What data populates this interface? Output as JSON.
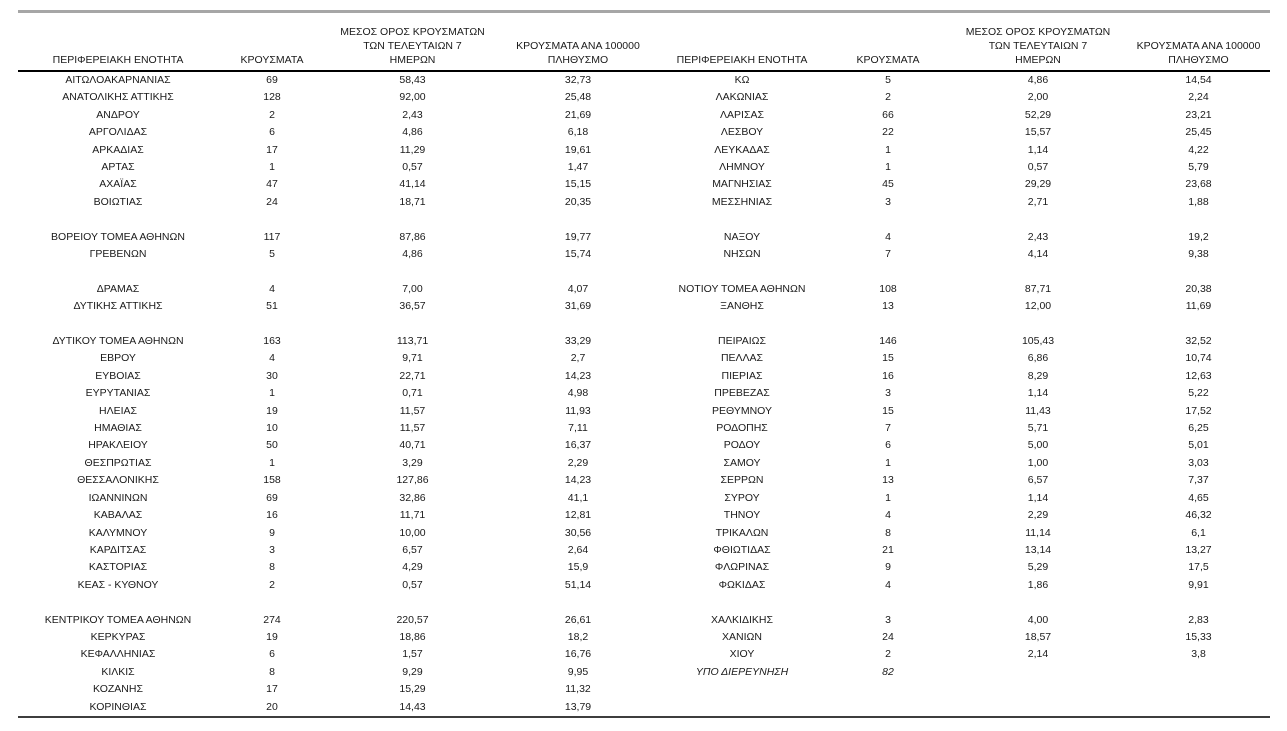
{
  "colors": {
    "background": "#ffffff",
    "text": "#1a1a1a",
    "top_rule": "#a6a6a6",
    "header_rule": "#000000",
    "bottom_rule": "#3d3d3d"
  },
  "table": {
    "header": {
      "col_region": "ΠΕΡΙΦΕΡΕΙΑΚΗ ΕΝΟΤΗΤΑ",
      "col_cases": "ΚΡΟΥΣΜΑΤΑ",
      "col_avg7_lines": [
        "ΜΕΣΟΣ ΟΡΟΣ ΚΡΟΥΣΜΑΤΩΝ",
        "ΤΩΝ ΤΕΛΕΥΤΑΙΩΝ 7",
        "ΗΜΕΡΩΝ"
      ],
      "col_per100k_lines": [
        "ΚΡΟΥΣΜΑΤΑ ΑΝΑ 100000",
        "ΠΛΗΘΥΣΜΟ"
      ]
    },
    "left_rows": [
      {
        "region": "ΑΙΤΩΛΟΑΚΑΡΝΑΝΙΑΣ",
        "cases": "69",
        "avg7": "58,43",
        "per100k": "32,73"
      },
      {
        "region": "ΑΝΑΤΟΛΙΚΗΣ ΑΤΤΙΚΗΣ",
        "cases": "128",
        "avg7": "92,00",
        "per100k": "25,48"
      },
      {
        "region": "ΑΝΔΡΟΥ",
        "cases": "2",
        "avg7": "2,43",
        "per100k": "21,69"
      },
      {
        "region": "ΑΡΓΟΛΙΔΑΣ",
        "cases": "6",
        "avg7": "4,86",
        "per100k": "6,18"
      },
      {
        "region": "ΑΡΚΑΔΙΑΣ",
        "cases": "17",
        "avg7": "11,29",
        "per100k": "19,61"
      },
      {
        "region": "ΑΡΤΑΣ",
        "cases": "1",
        "avg7": "0,57",
        "per100k": "1,47"
      },
      {
        "region": "ΑΧΑΪΑΣ",
        "cases": "47",
        "avg7": "41,14",
        "per100k": "15,15"
      },
      {
        "region": "ΒΟΙΩΤΙΑΣ",
        "cases": "24",
        "avg7": "18,71",
        "per100k": "20,35"
      },
      {
        "region": "",
        "cases": "",
        "avg7": "",
        "per100k": ""
      },
      {
        "region": "ΒΟΡΕΙΟΥ ΤΟΜΕΑ ΑΘΗΝΩΝ",
        "cases": "117",
        "avg7": "87,86",
        "per100k": "19,77"
      },
      {
        "region": "ΓΡΕΒΕΝΩΝ",
        "cases": "5",
        "avg7": "4,86",
        "per100k": "15,74"
      },
      {
        "region": "",
        "cases": "",
        "avg7": "",
        "per100k": ""
      },
      {
        "region": "ΔΡΑΜΑΣ",
        "cases": "4",
        "avg7": "7,00",
        "per100k": "4,07"
      },
      {
        "region": "ΔΥΤΙΚΗΣ ΑΤΤΙΚΗΣ",
        "cases": "51",
        "avg7": "36,57",
        "per100k": "31,69"
      },
      {
        "region": "",
        "cases": "",
        "avg7": "",
        "per100k": ""
      },
      {
        "region": "ΔΥΤΙΚΟΥ ΤΟΜΕΑ ΑΘΗΝΩΝ",
        "cases": "163",
        "avg7": "113,71",
        "per100k": "33,29"
      },
      {
        "region": "ΕΒΡΟΥ",
        "cases": "4",
        "avg7": "9,71",
        "per100k": "2,7"
      },
      {
        "region": "ΕΥΒΟΙΑΣ",
        "cases": "30",
        "avg7": "22,71",
        "per100k": "14,23"
      },
      {
        "region": "ΕΥΡΥΤΑΝΙΑΣ",
        "cases": "1",
        "avg7": "0,71",
        "per100k": "4,98"
      },
      {
        "region": "ΗΛΕΙΑΣ",
        "cases": "19",
        "avg7": "11,57",
        "per100k": "11,93"
      },
      {
        "region": "ΗΜΑΘΙΑΣ",
        "cases": "10",
        "avg7": "11,57",
        "per100k": "7,11"
      },
      {
        "region": "ΗΡΑΚΛΕΙΟΥ",
        "cases": "50",
        "avg7": "40,71",
        "per100k": "16,37"
      },
      {
        "region": "ΘΕΣΠΡΩΤΙΑΣ",
        "cases": "1",
        "avg7": "3,29",
        "per100k": "2,29"
      },
      {
        "region": "ΘΕΣΣΑΛΟΝΙΚΗΣ",
        "cases": "158",
        "avg7": "127,86",
        "per100k": "14,23"
      },
      {
        "region": "ΙΩΑΝΝΙΝΩΝ",
        "cases": "69",
        "avg7": "32,86",
        "per100k": "41,1"
      },
      {
        "region": "ΚΑΒΑΛΑΣ",
        "cases": "16",
        "avg7": "11,71",
        "per100k": "12,81"
      },
      {
        "region": "ΚΑΛΥΜΝΟΥ",
        "cases": "9",
        "avg7": "10,00",
        "per100k": "30,56"
      },
      {
        "region": "ΚΑΡΔΙΤΣΑΣ",
        "cases": "3",
        "avg7": "6,57",
        "per100k": "2,64"
      },
      {
        "region": "ΚΑΣΤΟΡΙΑΣ",
        "cases": "8",
        "avg7": "4,29",
        "per100k": "15,9"
      },
      {
        "region": "ΚΕΑΣ - ΚΥΘΝΟΥ",
        "cases": "2",
        "avg7": "0,57",
        "per100k": "51,14"
      },
      {
        "region": "",
        "cases": "",
        "avg7": "",
        "per100k": ""
      },
      {
        "region": "ΚΕΝΤΡΙΚΟΥ ΤΟΜΕΑ ΑΘΗΝΩΝ",
        "cases": "274",
        "avg7": "220,57",
        "per100k": "26,61"
      },
      {
        "region": "ΚΕΡΚΥΡΑΣ",
        "cases": "19",
        "avg7": "18,86",
        "per100k": "18,2"
      },
      {
        "region": "ΚΕΦΑΛΛΗΝΙΑΣ",
        "cases": "6",
        "avg7": "1,57",
        "per100k": "16,76"
      },
      {
        "region": "ΚΙΛΚΙΣ",
        "cases": "8",
        "avg7": "9,29",
        "per100k": "9,95"
      },
      {
        "region": "ΚΟΖΑΝΗΣ",
        "cases": "17",
        "avg7": "15,29",
        "per100k": "11,32"
      },
      {
        "region": "ΚΟΡΙΝΘΙΑΣ",
        "cases": "20",
        "avg7": "14,43",
        "per100k": "13,79"
      }
    ],
    "right_rows": [
      {
        "region": "ΚΩ",
        "cases": "5",
        "avg7": "4,86",
        "per100k": "14,54"
      },
      {
        "region": "ΛΑΚΩΝΙΑΣ",
        "cases": "2",
        "avg7": "2,00",
        "per100k": "2,24"
      },
      {
        "region": "ΛΑΡΙΣΑΣ",
        "cases": "66",
        "avg7": "52,29",
        "per100k": "23,21"
      },
      {
        "region": "ΛΕΣΒΟΥ",
        "cases": "22",
        "avg7": "15,57",
        "per100k": "25,45"
      },
      {
        "region": "ΛΕΥΚΑΔΑΣ",
        "cases": "1",
        "avg7": "1,14",
        "per100k": "4,22"
      },
      {
        "region": "ΛΗΜΝΟΥ",
        "cases": "1",
        "avg7": "0,57",
        "per100k": "5,79"
      },
      {
        "region": "ΜΑΓΝΗΣΙΑΣ",
        "cases": "45",
        "avg7": "29,29",
        "per100k": "23,68"
      },
      {
        "region": "ΜΕΣΣΗΝΙΑΣ",
        "cases": "3",
        "avg7": "2,71",
        "per100k": "1,88"
      },
      {
        "region": "",
        "cases": "",
        "avg7": "",
        "per100k": ""
      },
      {
        "region": "ΝΑΞΟΥ",
        "cases": "4",
        "avg7": "2,43",
        "per100k": "19,2"
      },
      {
        "region": "ΝΗΣΩΝ",
        "cases": "7",
        "avg7": "4,14",
        "per100k": "9,38"
      },
      {
        "region": "",
        "cases": "",
        "avg7": "",
        "per100k": ""
      },
      {
        "region": "ΝΟΤΙΟΥ ΤΟΜΕΑ ΑΘΗΝΩΝ",
        "cases": "108",
        "avg7": "87,71",
        "per100k": "20,38"
      },
      {
        "region": "ΞΑΝΘΗΣ",
        "cases": "13",
        "avg7": "12,00",
        "per100k": "11,69"
      },
      {
        "region": "",
        "cases": "",
        "avg7": "",
        "per100k": ""
      },
      {
        "region": "ΠΕΙΡΑΙΩΣ",
        "cases": "146",
        "avg7": "105,43",
        "per100k": "32,52"
      },
      {
        "region": "ΠΕΛΛΑΣ",
        "cases": "15",
        "avg7": "6,86",
        "per100k": "10,74"
      },
      {
        "region": "ΠΙΕΡΙΑΣ",
        "cases": "16",
        "avg7": "8,29",
        "per100k": "12,63"
      },
      {
        "region": "ΠΡΕΒΕΖΑΣ",
        "cases": "3",
        "avg7": "1,14",
        "per100k": "5,22"
      },
      {
        "region": "ΡΕΘΥΜΝΟΥ",
        "cases": "15",
        "avg7": "11,43",
        "per100k": "17,52"
      },
      {
        "region": "ΡΟΔΟΠΗΣ",
        "cases": "7",
        "avg7": "5,71",
        "per100k": "6,25"
      },
      {
        "region": "ΡΟΔΟΥ",
        "cases": "6",
        "avg7": "5,00",
        "per100k": "5,01"
      },
      {
        "region": "ΣΑΜΟΥ",
        "cases": "1",
        "avg7": "1,00",
        "per100k": "3,03"
      },
      {
        "region": "ΣΕΡΡΩΝ",
        "cases": "13",
        "avg7": "6,57",
        "per100k": "7,37"
      },
      {
        "region": "ΣΥΡΟΥ",
        "cases": "1",
        "avg7": "1,14",
        "per100k": "4,65"
      },
      {
        "region": "ΤΗΝΟΥ",
        "cases": "4",
        "avg7": "2,29",
        "per100k": "46,32"
      },
      {
        "region": "ΤΡΙΚΑΛΩΝ",
        "cases": "8",
        "avg7": "11,14",
        "per100k": "6,1"
      },
      {
        "region": "ΦΘΙΩΤΙΔΑΣ",
        "cases": "21",
        "avg7": "13,14",
        "per100k": "13,27"
      },
      {
        "region": "ΦΛΩΡΙΝΑΣ",
        "cases": "9",
        "avg7": "5,29",
        "per100k": "17,5"
      },
      {
        "region": "ΦΩΚΙΔΑΣ",
        "cases": "4",
        "avg7": "1,86",
        "per100k": "9,91"
      },
      {
        "region": "",
        "cases": "",
        "avg7": "",
        "per100k": ""
      },
      {
        "region": "ΧΑΛΚΙΔΙΚΗΣ",
        "cases": "3",
        "avg7": "4,00",
        "per100k": "2,83"
      },
      {
        "region": "ΧΑΝΙΩΝ",
        "cases": "24",
        "avg7": "18,57",
        "per100k": "15,33"
      },
      {
        "region": "ΧΙΟΥ",
        "cases": "2",
        "avg7": "2,14",
        "per100k": "3,8"
      },
      {
        "region": "ΥΠΟ ΔΙΕΡΕΥΝΗΣΗ",
        "cases": "82",
        "avg7": "",
        "per100k": "",
        "italic": true
      },
      {
        "region": "",
        "cases": "",
        "avg7": "",
        "per100k": ""
      },
      {
        "region": "",
        "cases": "",
        "avg7": "",
        "per100k": ""
      }
    ]
  }
}
